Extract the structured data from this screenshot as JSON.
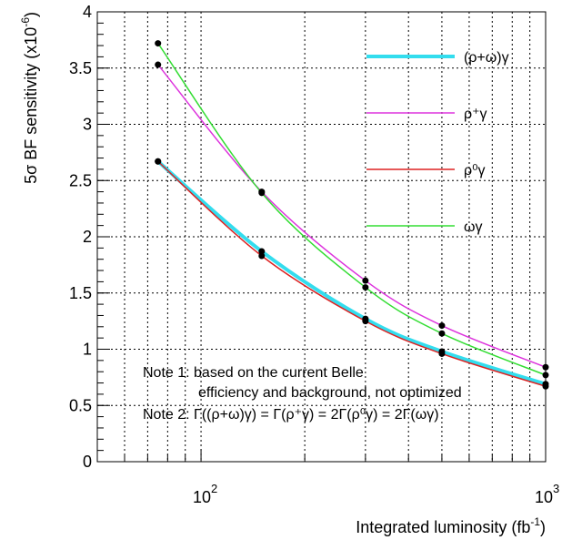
{
  "chart_data": {
    "type": "line",
    "xlabel_main": "Integrated luminosity (fb",
    "xlabel_sup": "-1",
    "xlabel_end": ")",
    "ylabel_main": "5σ BF sensitivity (x10",
    "ylabel_sup": "-6",
    "ylabel_end": ")",
    "x_scale": "log",
    "xlim": [
      50,
      1000
    ],
    "ylim": [
      0,
      4
    ],
    "grid": true,
    "x_tick_labels": [
      {
        "base": "10",
        "exp": "2",
        "value": 100
      },
      {
        "base": "10",
        "exp": "3",
        "value": 1000
      }
    ],
    "y_ticks": [
      0,
      0.5,
      1,
      1.5,
      2,
      2.5,
      3,
      3.5,
      4
    ],
    "y_tick_labels": [
      "0",
      "0.5",
      "1",
      "1.5",
      "2",
      "2.5",
      "3",
      "3.5",
      "4"
    ],
    "legend_position": "top-right",
    "series": [
      {
        "name": "(ρ+ω)γ",
        "color": "#33ddee",
        "width": 4,
        "x": [
          75,
          150,
          300,
          500,
          1000
        ],
        "y": [
          2.67,
          1.87,
          1.27,
          0.98,
          0.69
        ]
      },
      {
        "name": "ρ⁺γ",
        "color": "#dd33dd",
        "width": 1.5,
        "x": [
          75,
          150,
          300,
          500,
          1000
        ],
        "y": [
          3.53,
          2.4,
          1.61,
          1.21,
          0.84
        ]
      },
      {
        "name": "ρ⁰γ",
        "color": "#dd2222",
        "width": 1.5,
        "x": [
          75,
          150,
          300,
          500,
          1000
        ],
        "y": [
          2.67,
          1.83,
          1.25,
          0.96,
          0.67
        ]
      },
      {
        "name": "ωγ",
        "color": "#33dd33",
        "width": 1.5,
        "x": [
          75,
          150,
          300,
          500,
          1000
        ],
        "y": [
          3.72,
          2.39,
          1.55,
          1.14,
          0.77
        ]
      }
    ],
    "annotations": [
      "Note 1: based on the current Belle",
      "efficiency and background, not optimized",
      "Note 2: Γ((ρ+ω)γ) = Γ(ρ⁺γ) = 2Γ(ρ⁰γ) = 2Γ(ωγ)"
    ]
  }
}
